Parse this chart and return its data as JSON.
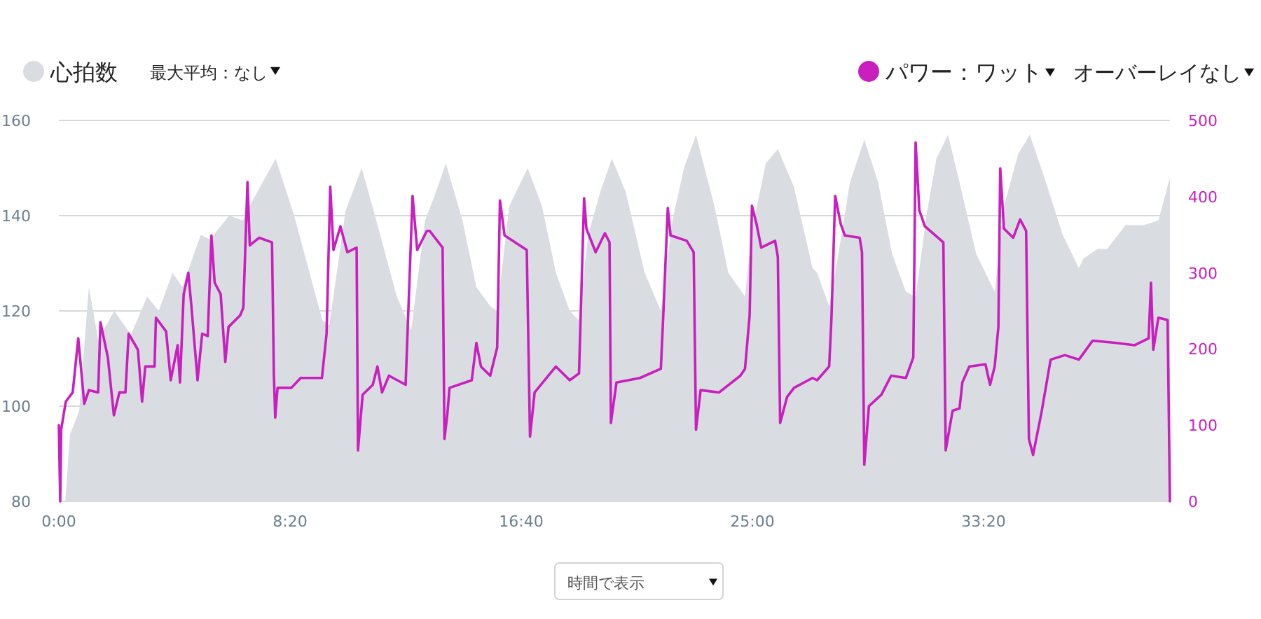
{
  "chart_data": {
    "type": "area",
    "legend": "top",
    "grid": "y",
    "xlim": [
      0,
      2403
    ],
    "xticks": [
      {
        "value": 0,
        "label": "0:00"
      },
      {
        "value": 500,
        "label": "8:20"
      },
      {
        "value": 1000,
        "label": "16:40"
      },
      {
        "value": 1500,
        "label": "25:00"
      },
      {
        "value": 2000,
        "label": "33:20"
      }
    ],
    "ylim": [
      80,
      160
    ],
    "yticks": [
      80,
      100,
      120,
      140,
      160
    ],
    "y2lim": [
      0,
      500
    ],
    "y2ticks": [
      0,
      100,
      200,
      300,
      400,
      500
    ],
    "annotations": [
      "最大平均：なし",
      "オーバーレイなし",
      "時間で表示"
    ],
    "series": [
      {
        "name": "心拍数",
        "color": "#d9dde1",
        "x": [
          14,
          24,
          44,
          65,
          85,
          120,
          156,
          191,
          216,
          246,
          267,
          307,
          327,
          368,
          398,
          418,
          469,
          509,
          570,
          585,
          620,
          655,
          681,
          731,
          762,
          792,
          812,
          837,
          873,
          903,
          933,
          948,
          974,
          1014,
          1045,
          1075,
          1105,
          1125,
          1145,
          1171,
          1196,
          1226,
          1267,
          1302,
          1327,
          1352,
          1378,
          1418,
          1448,
          1484,
          1499,
          1529,
          1555,
          1590,
          1630,
          1640,
          1666,
          1681,
          1711,
          1742,
          1772,
          1802,
          1832,
          1853,
          1878,
          1898,
          1923,
          1948,
          1984,
          2024,
          2044,
          2075,
          2100,
          2135,
          2171,
          2206,
          2216,
          2246,
          2267,
          2307,
          2347,
          2378,
          2403
        ],
        "values": [
          80,
          94,
          99,
          125,
          114,
          120,
          115,
          123,
          120,
          128,
          125,
          136,
          135,
          140,
          139,
          143,
          152,
          140,
          118,
          117,
          141,
          150,
          141,
          123,
          116,
          139,
          144,
          151,
          139,
          125,
          121,
          120,
          142,
          150,
          142,
          128,
          120,
          118,
          136,
          145,
          152,
          145,
          128,
          120,
          139,
          150,
          157,
          142,
          128,
          123,
          137,
          151,
          154,
          146,
          129,
          128,
          121,
          129,
          147,
          156,
          147,
          132,
          124,
          123,
          141,
          152,
          157,
          147,
          132,
          124,
          142,
          153,
          157,
          147,
          136,
          129,
          131,
          133,
          133,
          138,
          138,
          139,
          148
        ]
      },
      {
        "name": "パワー：ワット",
        "type": "line",
        "axis": "y2",
        "color": "#c81fbe",
        "x": [
          0,
          3,
          5,
          15,
          30,
          42,
          55,
          65,
          85,
          90,
          106,
          119,
          131,
          144,
          151,
          171,
          180,
          187,
          207,
          210,
          232,
          242,
          257,
          262,
          270,
          280,
          287,
          300,
          310,
          322,
          330,
          337,
          350,
          360,
          367,
          392,
          399,
          408,
          413,
          433,
          461,
          465,
          468,
          473,
          503,
          523,
          569,
          579,
          587,
          594,
          609,
          624,
          644,
          647,
          657,
          679,
          689,
          699,
          714,
          750,
          765,
          775,
          796,
          802,
          830,
          834,
          840,
          845,
          893,
          903,
          913,
          933,
          948,
          954,
          964,
          1012,
          1019,
          1029,
          1075,
          1105,
          1125,
          1136,
          1141,
          1161,
          1181,
          1191,
          1194,
          1206,
          1257,
          1302,
          1307,
          1317,
          1323,
          1358,
          1373,
          1378,
          1388,
          1428,
          1474,
          1484,
          1494,
          1499,
          1509,
          1519,
          1549,
          1555,
          1560,
          1575,
          1590,
          1630,
          1640,
          1666,
          1671,
          1679,
          1691,
          1700,
          1732,
          1737,
          1742,
          1752,
          1779,
          1800,
          1832,
          1848,
          1853,
          1861,
          1873,
          1913,
          1918,
          1933,
          1948,
          1954,
          1969,
          2004,
          2014,
          2024,
          2032,
          2036,
          2044,
          2064,
          2079,
          2092,
          2098,
          2107,
          2125,
          2145,
          2176,
          2206,
          2236,
          2287,
          2327,
          2357,
          2362,
          2367,
          2378,
          2398,
          2403
        ],
        "values": [
          100,
          0,
          94,
          131,
          143,
          214,
          128,
          146,
          143,
          235,
          189,
          113,
          143,
          143,
          220,
          199,
          131,
          177,
          177,
          241,
          223,
          159,
          205,
          156,
          272,
          300,
          254,
          159,
          220,
          217,
          349,
          287,
          272,
          183,
          229,
          244,
          254,
          419,
          336,
          346,
          340,
          168,
          110,
          149,
          149,
          162,
          162,
          220,
          413,
          330,
          361,
          327,
          333,
          67,
          140,
          153,
          177,
          143,
          165,
          153,
          401,
          330,
          355,
          355,
          333,
          82,
          113,
          149,
          159,
          208,
          177,
          165,
          202,
          395,
          349,
          330,
          85,
          143,
          177,
          159,
          168,
          398,
          358,
          327,
          352,
          340,
          103,
          156,
          162,
          174,
          241,
          385,
          349,
          342,
          327,
          94,
          146,
          143,
          165,
          174,
          244,
          388,
          364,
          333,
          342,
          321,
          103,
          137,
          149,
          162,
          159,
          177,
          241,
          401,
          364,
          349,
          346,
          327,
          48,
          125,
          140,
          165,
          162,
          189,
          471,
          382,
          361,
          340,
          67,
          119,
          122,
          156,
          177,
          180,
          153,
          177,
          229,
          437,
          358,
          346,
          370,
          355,
          82,
          61,
          116,
          186,
          192,
          186,
          211,
          208,
          205,
          214,
          287,
          199,
          241,
          238,
          0
        ]
      }
    ]
  }
}
